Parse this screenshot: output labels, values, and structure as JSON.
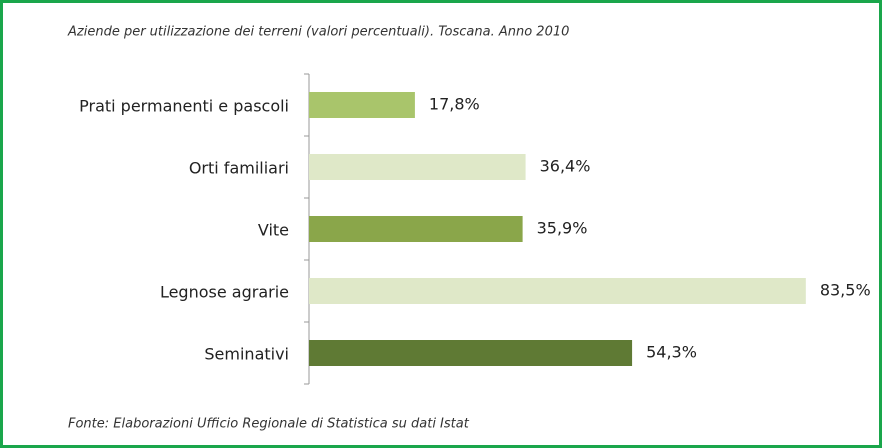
{
  "chart_data": {
    "type": "bar",
    "orientation": "horizontal",
    "title": "Aziende per utilizzazione dei terreni (valori percentuali). Toscana. Anno 2010",
    "source": "Fonte: Elaborazioni Ufficio Regionale di Statistica su dati Istat",
    "categories": [
      "Prati permanenti e pascoli",
      "Orti familiari",
      "Vite",
      "Legnose agrarie",
      "Seminativi"
    ],
    "values": [
      17.8,
      36.4,
      35.9,
      83.5,
      54.3
    ],
    "value_labels": [
      "17,8%",
      "36,4%",
      "35,9%",
      "83,5%",
      "54,3%"
    ],
    "colors": [
      "#a9c56b",
      "#dfe8c8",
      "#8aa64a",
      "#dfe8c8",
      "#5f7a34"
    ],
    "xlim": [
      0,
      100
    ]
  }
}
